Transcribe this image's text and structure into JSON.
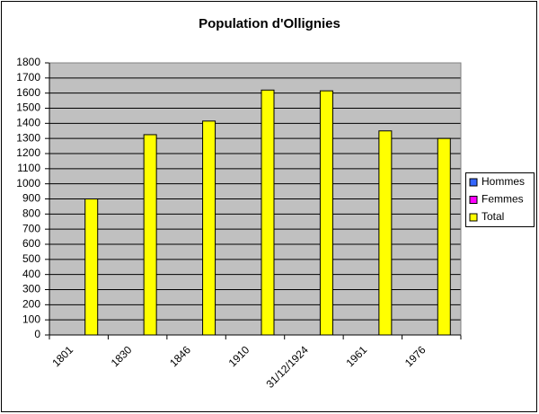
{
  "chart_data": {
    "type": "bar",
    "title": "Population d'Ollignies",
    "categories": [
      "1801",
      "1830",
      "1846",
      "1910",
      "31/12/1924",
      "1961",
      "1976"
    ],
    "series": [
      {
        "name": "Hommes",
        "color": "#3366ff",
        "values": [
          null,
          null,
          null,
          null,
          null,
          null,
          null
        ]
      },
      {
        "name": "Femmes",
        "color": "#ff00ff",
        "values": [
          null,
          null,
          null,
          null,
          null,
          null,
          null
        ]
      },
      {
        "name": "Total",
        "color": "#ffff00",
        "values": [
          900,
          1325,
          1415,
          1620,
          1615,
          1350,
          1300
        ]
      }
    ],
    "ylim": [
      0,
      1800
    ],
    "yticks": [
      0,
      100,
      200,
      300,
      400,
      500,
      600,
      700,
      800,
      900,
      1000,
      1100,
      1200,
      1300,
      1400,
      1500,
      1600,
      1700,
      1800
    ],
    "grid": true,
    "legend": "right",
    "background": "#c0c0c0"
  }
}
